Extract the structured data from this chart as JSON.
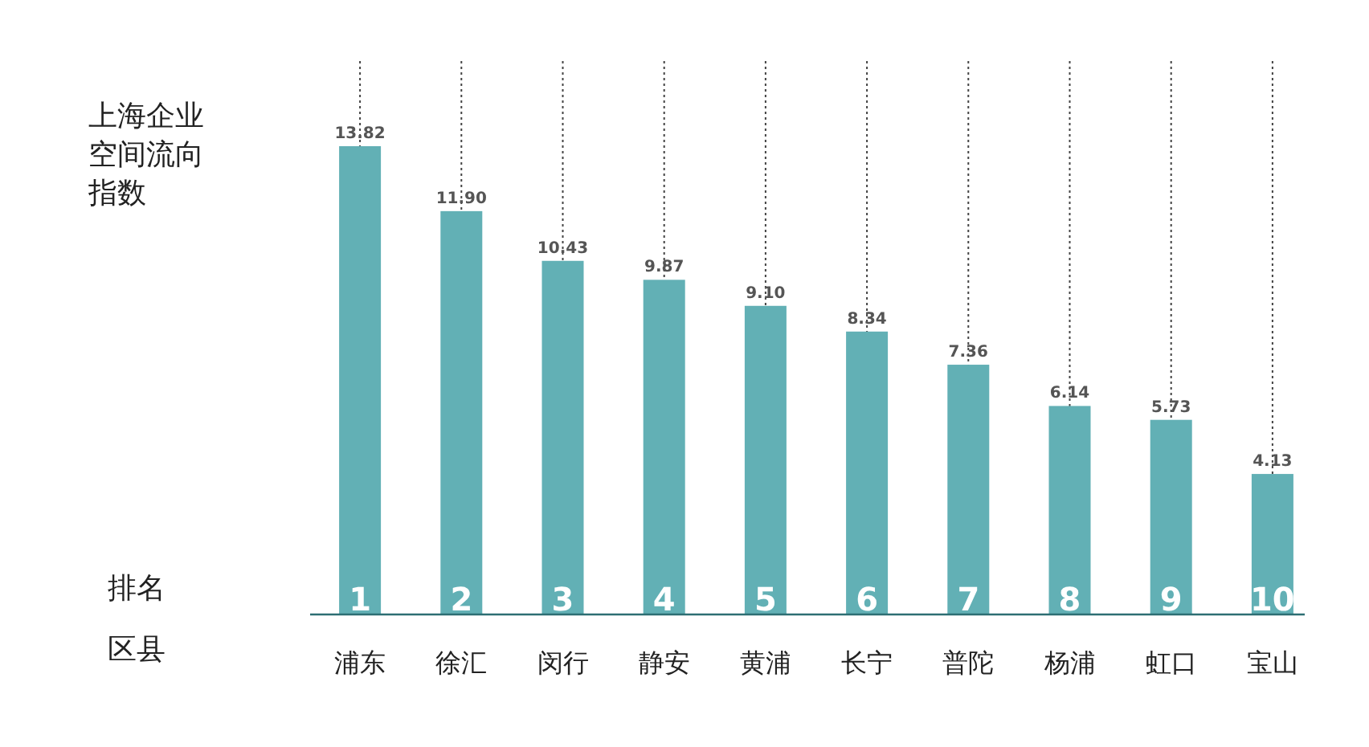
{
  "chart_data": {
    "type": "bar",
    "title": "上海企业空间流向指数",
    "categories": [
      "浦东",
      "徐汇",
      "闵行",
      "静安",
      "黄浦",
      "长宁",
      "普陀",
      "杨浦",
      "虹口",
      "宝山"
    ],
    "values": [
      13.82,
      11.9,
      10.43,
      9.87,
      9.1,
      8.34,
      7.36,
      6.14,
      5.73,
      4.13
    ],
    "value_labels": [
      "13.82",
      "11.90",
      "10.43",
      "9.87",
      "9.10",
      "8.34",
      "7.36",
      "6.14",
      "5.73",
      "4.13"
    ],
    "color": "#62b0b5",
    "grid": "x",
    "annotations": [
      "排名",
      "区县",
      {
        "text": "1",
        "x": "浦东",
        "y": 0
      },
      {
        "text": "2",
        "x": "徐汇",
        "y": 0
      },
      {
        "text": "3",
        "x": "闵行",
        "y": 0
      },
      {
        "text": "4",
        "x": "静安",
        "y": 0
      },
      {
        "text": "5",
        "x": "黄浦",
        "y": 0
      },
      {
        "text": "6",
        "x": "长宁",
        "y": 0
      },
      {
        "text": "7",
        "x": "普陀",
        "y": 0
      },
      {
        "text": "8",
        "x": "杨浦",
        "y": 0
      },
      {
        "text": "9",
        "x": "虹口",
        "y": 0
      },
      {
        "text": "10",
        "x": "宝山",
        "y": 0
      }
    ]
  }
}
